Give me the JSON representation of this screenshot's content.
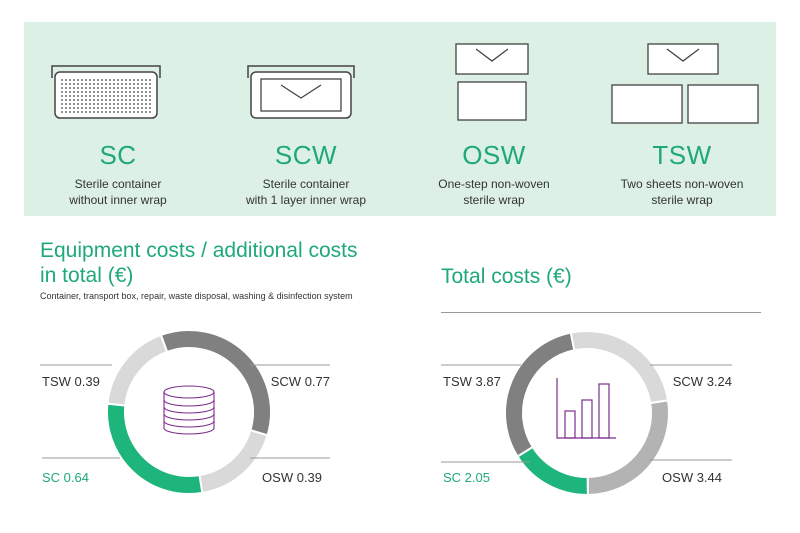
{
  "methods": [
    {
      "code": "SC",
      "desc": [
        "Sterile container",
        "without inner wrap"
      ],
      "icon": "container-perforated-icon"
    },
    {
      "code": "SCW",
      "desc": [
        "Sterile container",
        "with 1 layer inner wrap"
      ],
      "icon": "container-wrap-icon"
    },
    {
      "code": "OSW",
      "desc": [
        "One-step non-woven",
        "sterile wrap"
      ],
      "icon": "one-sheet-wrap-icon"
    },
    {
      "code": "TSW",
      "desc": [
        "Two sheets non-woven",
        "sterile wrap"
      ],
      "icon": "two-sheet-wrap-icon"
    }
  ],
  "colors": {
    "accent": "#1fa97a",
    "band": "#dcf0e6",
    "SC": "#1db57c",
    "SCW": "#808080",
    "OSW": "#d9d9d9",
    "TSW": "#d9d9d9",
    "OSW_total": "#b3b3b3",
    "icon_purple": "#7b2d8e"
  },
  "chart_data": [
    {
      "type": "pie",
      "title_lines": [
        "Equipment costs / additional costs",
        "in total (€)"
      ],
      "subtitle": "Container, transport box, repair, waste disposal, washing & disinfection system",
      "center_icon": "stack-icon",
      "slices": [
        {
          "label": "SCW",
          "value": 0.77,
          "display": "SCW 0.77"
        },
        {
          "label": "OSW",
          "value": 0.39,
          "display": "OSW 0.39"
        },
        {
          "label": "SC",
          "value": 0.64,
          "display": "SC 0.64"
        },
        {
          "label": "TSW",
          "value": 0.39,
          "display": "TSW 0.39"
        }
      ]
    },
    {
      "type": "pie",
      "title_lines": [
        "Total costs (€)"
      ],
      "subtitle": "",
      "center_icon": "bar-chart-icon",
      "slices": [
        {
          "label": "SCW",
          "value": 3.24,
          "display": "SCW 3.24"
        },
        {
          "label": "OSW",
          "value": 3.44,
          "display": "OSW 3.44"
        },
        {
          "label": "SC",
          "value": 2.05,
          "display": "SC 2.05"
        },
        {
          "label": "TSW",
          "value": 3.87,
          "display": "TSW 3.87"
        }
      ]
    }
  ]
}
